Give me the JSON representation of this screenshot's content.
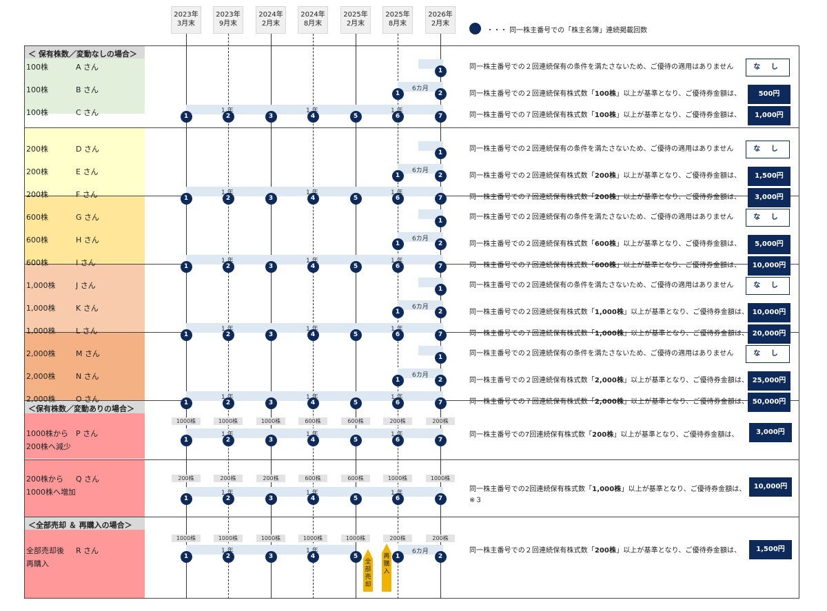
{
  "header": {
    "dates": [
      {
        "l1": "2023年",
        "l2": "3月末"
      },
      {
        "l1": "2023年",
        "l2": "9月末"
      },
      {
        "l1": "2024年",
        "l2": "2月末"
      },
      {
        "l1": "2024年",
        "l2": "8月末"
      },
      {
        "l1": "2025年",
        "l2": "2月末"
      },
      {
        "l1": "2025年",
        "l2": "8月末"
      },
      {
        "l1": "2026年",
        "l2": "2月末"
      }
    ],
    "legend": "・・・ 同一株主番号での「株主名簿」連続掲載回数"
  },
  "sections": {
    "no_change": "＜ 保有株数／変動なしの場合＞",
    "change": "＜保有株数／変動ありの場合＞",
    "sell_rebuy": "＜全部売却 ＆ 再購入の場合＞"
  },
  "bar_labels": {
    "year": "1 年",
    "half": "6カ月"
  },
  "texts": {
    "none": "同一株主番号での２回連続保有の条件を満たさないため、ご優待の適用はありません",
    "two_prefix": "同一株主番号での２回連続保有株式数「",
    "seven_prefix": "同一株主番号での７回連続保有株式数「",
    "suffix": "」以上が基準となり、ご優待券金額は、"
  },
  "groups": [
    {
      "color": "#e2efda",
      "rows": [
        {
          "shares": "100株",
          "name": "A さん",
          "pattern": "one",
          "badge": "な し"
        },
        {
          "shares": "100株",
          "name": "B さん",
          "pattern": "two",
          "amount": "100株",
          "badge": "500円"
        },
        {
          "shares": "100株",
          "name": "C さん",
          "pattern": "seven",
          "amount": "100株",
          "badge": "1,000円"
        }
      ]
    },
    {
      "color": "#ffffcc",
      "rows": [
        {
          "shares": "200株",
          "name": "D さん",
          "pattern": "one",
          "badge": "な し"
        },
        {
          "shares": "200株",
          "name": "E さん",
          "pattern": "two",
          "amount": "200株",
          "badge": "1,500円"
        },
        {
          "shares": "200株",
          "name": "F さん",
          "pattern": "seven",
          "amount": "200株",
          "badge": "3,000円"
        }
      ]
    },
    {
      "color": "#ffe699",
      "rows": [
        {
          "shares": "600株",
          "name": "G さん",
          "pattern": "one",
          "badge": "な し"
        },
        {
          "shares": "600株",
          "name": "H さん",
          "pattern": "two",
          "amount": "600株",
          "badge": "5,000円"
        },
        {
          "shares": "600株",
          "name": "I さん",
          "pattern": "seven",
          "amount": "600株",
          "badge": "10,000円"
        }
      ]
    },
    {
      "color": "#f8cbad",
      "rows": [
        {
          "shares": "1,000株",
          "name": "J さん",
          "pattern": "one",
          "badge": "な し"
        },
        {
          "shares": "1,000株",
          "name": "K さん",
          "pattern": "two",
          "amount": "1,000株",
          "badge": "10,000円"
        },
        {
          "shares": "1,000株",
          "name": "L さん",
          "pattern": "seven",
          "amount": "1,000株",
          "badge": "20,000円"
        }
      ]
    },
    {
      "color": "#f4b183",
      "rows": [
        {
          "shares": "2,000株",
          "name": "M さん",
          "pattern": "one",
          "badge": "な し"
        },
        {
          "shares": "2,000株",
          "name": "N さん",
          "pattern": "two",
          "amount": "2,000株",
          "badge": "25,000円"
        },
        {
          "shares": "2,000株",
          "name": "O さん",
          "pattern": "seven",
          "amount": "2,000株",
          "badge": "50,000円"
        }
      ]
    }
  ],
  "change_rows": [
    {
      "l1": "1000株から",
      "name": "P さん",
      "l2": "200株へ減少",
      "holdings": [
        "1000株",
        "1000株",
        "1000株",
        "600株",
        "600株",
        "200株",
        "200株"
      ],
      "text_pre": "同一株主番号での7回連続保有株式数「",
      "amount": "200株",
      "text_post": "」以上が基準となり、ご優待券金額は、",
      "badge": "3,000円"
    },
    {
      "l1": "200株から",
      "name": "Q さん",
      "l2": "1000株へ増加",
      "holdings": [
        "200株",
        "200株",
        "200株",
        "600株",
        "600株",
        "1000株",
        "1000株"
      ],
      "text_pre": "同一株主番号での2回連続保有株式数「",
      "amount": "1,000株",
      "text_post": "」以上が基準となり、ご優待券金額は、",
      "note": "※３",
      "badge": "10,000円"
    }
  ],
  "sell_row": {
    "l1": "全部売却後",
    "name": "R さん",
    "l2": "再購入",
    "holdings": [
      "1000株",
      "1000株",
      "1000株",
      "1000株",
      "1000株",
      "200株",
      "200株"
    ],
    "sold": "全部売却",
    "bought": "再購入",
    "text_pre": "同一株主番号での２回連続保有株式数「",
    "amount": "200株",
    "text_post": "」以上が基準となり、ご優待券金額は、",
    "badge": "1,500円"
  }
}
